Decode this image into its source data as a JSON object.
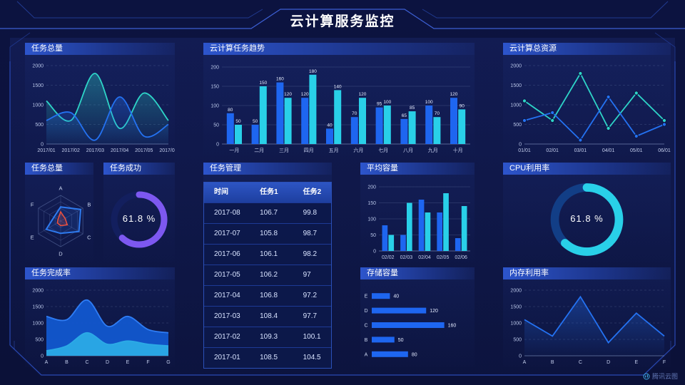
{
  "header": {
    "title": "云计算服务监控"
  },
  "watermark": {
    "label": "腾讯云图"
  },
  "colors": {
    "background": "#0b1138",
    "frame_line": "#2c4fc0",
    "title_bar": "#2d55cc",
    "bar_blue": "#1e66f0",
    "bar_cyan": "#29d0e8",
    "line_teal": "#2ed5c8",
    "line_blue": "#2472f2",
    "donut_purple": "#7d58f0",
    "donut_cyan": "#29d0e8",
    "radar_blue": "#2e7bf0",
    "radar_red": "#f0503c"
  },
  "table": {
    "title": "任务管理",
    "headers": [
      "时间",
      "任务1",
      "任务2"
    ],
    "rows": [
      [
        "2017-08",
        "106.7",
        "99.8"
      ],
      [
        "2017-07",
        "105.8",
        "98.7"
      ],
      [
        "2017-06",
        "106.1",
        "98.2"
      ],
      [
        "2017-05",
        "106.2",
        "97"
      ],
      [
        "2017-04",
        "106.8",
        "97.2"
      ],
      [
        "2017-03",
        "108.4",
        "97.7"
      ],
      [
        "2017-02",
        "109.3",
        "100.1"
      ],
      [
        "2017-01",
        "108.5",
        "104.5"
      ]
    ]
  },
  "chart_data": [
    {
      "id": "task_total_line",
      "type": "area",
      "title": "任务总量",
      "x": [
        "2017/01",
        "2017/02",
        "2017/03",
        "2017/04",
        "2017/05",
        "2017/06"
      ],
      "ylim": [
        0,
        2000
      ],
      "yticks": [
        0,
        500,
        1000,
        1500,
        2000
      ],
      "grid": "dash",
      "smooth": true,
      "fill": "gradient",
      "markers": false,
      "series": [
        {
          "name": "series-teal",
          "color": "#2ed5c8",
          "values": [
            1100,
            600,
            1800,
            400,
            1300,
            600
          ]
        },
        {
          "name": "series-blue",
          "color": "#2472f2",
          "values": [
            600,
            800,
            100,
            1200,
            200,
            500
          ]
        }
      ]
    },
    {
      "id": "task_trend",
      "type": "bar",
      "title": "云计算任务趋势",
      "categories": [
        "一月",
        "二月",
        "三月",
        "四月",
        "五月",
        "六月",
        "七月",
        "八月",
        "九月",
        "十月"
      ],
      "ylim": [
        0,
        200
      ],
      "yticks": [
        0,
        50,
        100,
        150,
        200
      ],
      "grid": "solid",
      "labels": true,
      "series": [
        {
          "name": "series-blue",
          "color": "#1e66f0",
          "values": [
            80,
            50,
            160,
            120,
            40,
            70,
            95,
            65,
            100,
            120
          ]
        },
        {
          "name": "series-cyan",
          "color": "#29d0e8",
          "values": [
            50,
            150,
            120,
            180,
            140,
            120,
            100,
            85,
            70,
            90
          ]
        }
      ]
    },
    {
      "id": "cloud_resource",
      "type": "line",
      "title": "云计算总资源",
      "x": [
        "01/01",
        "02/01",
        "03/01",
        "04/01",
        "05/01",
        "06/01"
      ],
      "ylim": [
        0,
        2000
      ],
      "yticks": [
        0,
        500,
        1000,
        1500,
        2000
      ],
      "grid": "dash",
      "smooth": false,
      "markers": true,
      "series": [
        {
          "name": "series-teal",
          "color": "#2ed5c8",
          "values": [
            1100,
            600,
            1800,
            400,
            1300,
            600
          ]
        },
        {
          "name": "series-blue",
          "color": "#2472f2",
          "values": [
            600,
            800,
            100,
            1200,
            200,
            500
          ]
        }
      ]
    },
    {
      "id": "task_radar",
      "type": "radar",
      "title": "任务总量",
      "indicators": [
        "A",
        "B",
        "C",
        "D",
        "E",
        "F"
      ],
      "max": 100,
      "series": [
        {
          "name": "radar-blue",
          "color": "#2e7bf0",
          "values": [
            55,
            90,
            82,
            48,
            65,
            30
          ]
        },
        {
          "name": "radar-red",
          "color": "#f0503c",
          "values": [
            36,
            20,
            30,
            18,
            15,
            12
          ]
        }
      ]
    },
    {
      "id": "task_success",
      "type": "donut",
      "title": "任务成功",
      "value": 61.8,
      "label": "61.8 %",
      "color": "#7d58f0",
      "track": "#131f5e"
    },
    {
      "id": "avg_capacity",
      "type": "bar",
      "title": "平均容量",
      "categories": [
        "02/02",
        "02/03",
        "02/04",
        "02/05",
        "02/06"
      ],
      "ylim": [
        0,
        200
      ],
      "yticks": [
        0,
        50,
        100,
        150,
        200
      ],
      "grid": "solid",
      "labels": false,
      "series": [
        {
          "name": "series-blue",
          "color": "#1e66f0",
          "values": [
            80,
            50,
            160,
            120,
            40
          ]
        },
        {
          "name": "series-cyan",
          "color": "#29d0e8",
          "values": [
            50,
            150,
            120,
            180,
            140
          ]
        }
      ]
    },
    {
      "id": "cpu_usage",
      "type": "donut",
      "title": "CPU利用率",
      "value": 61.8,
      "label": "61.8 %",
      "color": "#29d0e8",
      "track": "#123e86"
    },
    {
      "id": "task_completion",
      "type": "stacked-area",
      "title": "任务完成率",
      "x": [
        "A",
        "B",
        "C",
        "D",
        "E",
        "F",
        "G"
      ],
      "ylim": [
        0,
        2000
      ],
      "yticks": [
        0,
        500,
        1000,
        1500,
        2000
      ],
      "grid": "dash",
      "smooth": true,
      "fill": "solid",
      "markers": false,
      "series": [
        {
          "name": "total",
          "color": "#2f7df5",
          "fill": "#1257cf",
          "values": [
            1200,
            1100,
            1700,
            900,
            1200,
            800,
            700
          ]
        },
        {
          "name": "inner",
          "color": "#2baae6",
          "fill": "#2baae6",
          "values": [
            150,
            300,
            700,
            350,
            450,
            350,
            300
          ]
        }
      ]
    },
    {
      "id": "storage",
      "type": "hbar",
      "title": "存储容量",
      "categories": [
        "E",
        "D",
        "C",
        "B",
        "A"
      ],
      "values": [
        40,
        120,
        160,
        50,
        80
      ],
      "xmax": 170,
      "color": "#1e66f0"
    },
    {
      "id": "memory",
      "type": "line-area",
      "title": "内存利用率",
      "x": [
        "A",
        "B",
        "C",
        "D",
        "E",
        "F"
      ],
      "ylim": [
        0,
        2000
      ],
      "yticks": [
        0,
        500,
        1000,
        1500,
        2000
      ],
      "grid": "dash",
      "smooth": false,
      "fill": "gradient",
      "markers": false,
      "series": [
        {
          "name": "series-blue",
          "color": "#2472f2",
          "values": [
            1100,
            600,
            1800,
            400,
            1300,
            600
          ]
        }
      ]
    }
  ]
}
